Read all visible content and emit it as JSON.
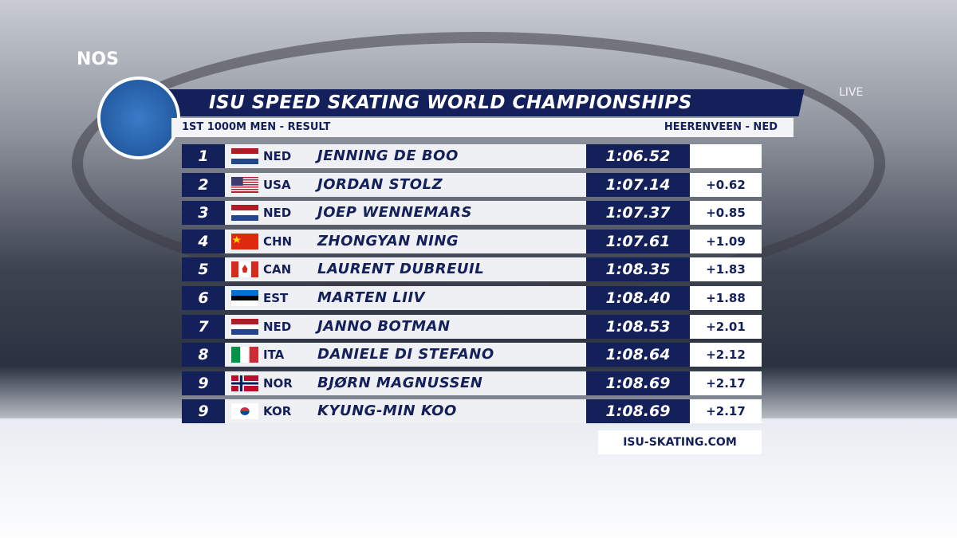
{
  "broadcaster": "NOS",
  "live_label": "LIVE",
  "header": {
    "title": "ISU SPEED SKATING WORLD CHAMPIONSHIPS",
    "event": "1ST 1000M MEN - RESULT",
    "location": "HEERENVEEN - NED"
  },
  "table": {
    "rows": [
      {
        "rank": "1",
        "country": "NED",
        "name": "JENNING DE BOO",
        "time": "1:06.52"
      },
      {
        "rank": "2",
        "country": "USA",
        "name": "JORDAN STOLZ",
        "time": "1:07.14",
        "gap": "+0.62"
      },
      {
        "rank": "3",
        "country": "NED",
        "name": "JOEP WENNEMARS",
        "time": "1:07.37",
        "gap": "+0.85"
      },
      {
        "rank": "4",
        "country": "CHN",
        "name": "ZHONGYAN NING",
        "time": "1:07.61",
        "gap": "+1.09"
      },
      {
        "rank": "5",
        "country": "CAN",
        "name": "LAURENT DUBREUIL",
        "time": "1:08.35",
        "gap": "+1.83"
      },
      {
        "rank": "6",
        "country": "EST",
        "name": "MARTEN LIIV",
        "time": "1:08.40",
        "gap": "+1.88"
      },
      {
        "rank": "7",
        "country": "NED",
        "name": "JANNO BOTMAN",
        "time": "1:08.53",
        "gap": "+2.01"
      },
      {
        "rank": "8",
        "country": "ITA",
        "name": "DANIELE DI STEFANO",
        "time": "1:08.64",
        "gap": "+2.12"
      },
      {
        "rank": "9",
        "country": "NOR",
        "name": "BJØRN MAGNUSSEN",
        "time": "1:08.69",
        "gap": "+2.17"
      },
      {
        "rank": "9",
        "country": "KOR",
        "name": "KYUNG-MIN KOO",
        "time": "1:08.69",
        "gap": "+2.17"
      }
    ]
  },
  "footer": {
    "website": "ISU-SKATING.COM"
  }
}
